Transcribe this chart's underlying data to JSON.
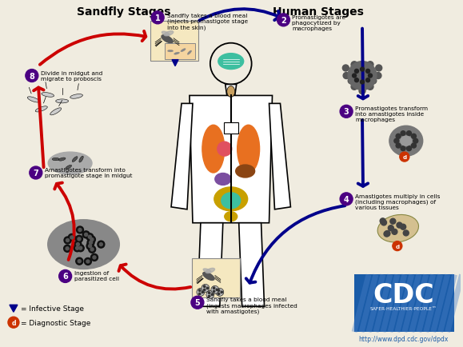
{
  "title_left": "Sandfly Stages",
  "title_right": "Human Stages",
  "background_color": "#f0ece0",
  "title_color": "#000000",
  "step1_label": "Sandfly takes a blood meal\n(injects promastigote stage\ninto the skin)",
  "step2_label": "Promastigotes are\nphagocytized by\nmacrophages",
  "step3_label": "Promastigotes transform\ninto amastigotes inside\nmacrophages",
  "step4_label": "Amastigotes multiply in cells\n(including macrophages) of\nvarious tissues",
  "step5_label": "Sandfly takes a blood meal\n(ingests macrophages infected\nwith amastigotes)",
  "step6_label": "Ingestion of\nparasitized cell",
  "step7_label": "Amastigotes transform into\npromastigote stage in midgut",
  "step8_label": "Divide in midgut and\nmigrate to proboscis",
  "legend1": "= Infective Stage",
  "legend2": "= Diagnostic Stage",
  "url": "http://www.dpd.cdc.gov/dpdx",
  "arrow_red_color": "#cc0000",
  "arrow_blue_color": "#00008b",
  "circle_color": "#4b0082",
  "circle_text_color": "#ffffff",
  "figsize": [
    5.79,
    4.35
  ],
  "dpi": 100
}
